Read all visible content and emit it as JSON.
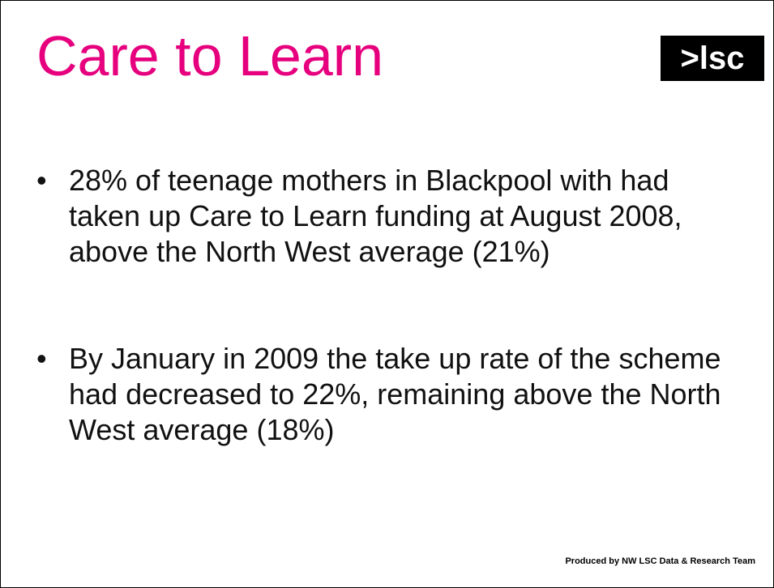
{
  "header": {
    "title": "Care to Learn",
    "logo": ">lsc"
  },
  "bullets": [
    "28% of teenage mothers in Blackpool with had taken up Care to Learn funding at August 2008, above the North West average (21%)",
    "By January in 2009 the take up rate of the scheme had decreased to 22%, remaining above the North West average (18%)"
  ],
  "footer": "Produced by NW LSC Data & Research Team"
}
